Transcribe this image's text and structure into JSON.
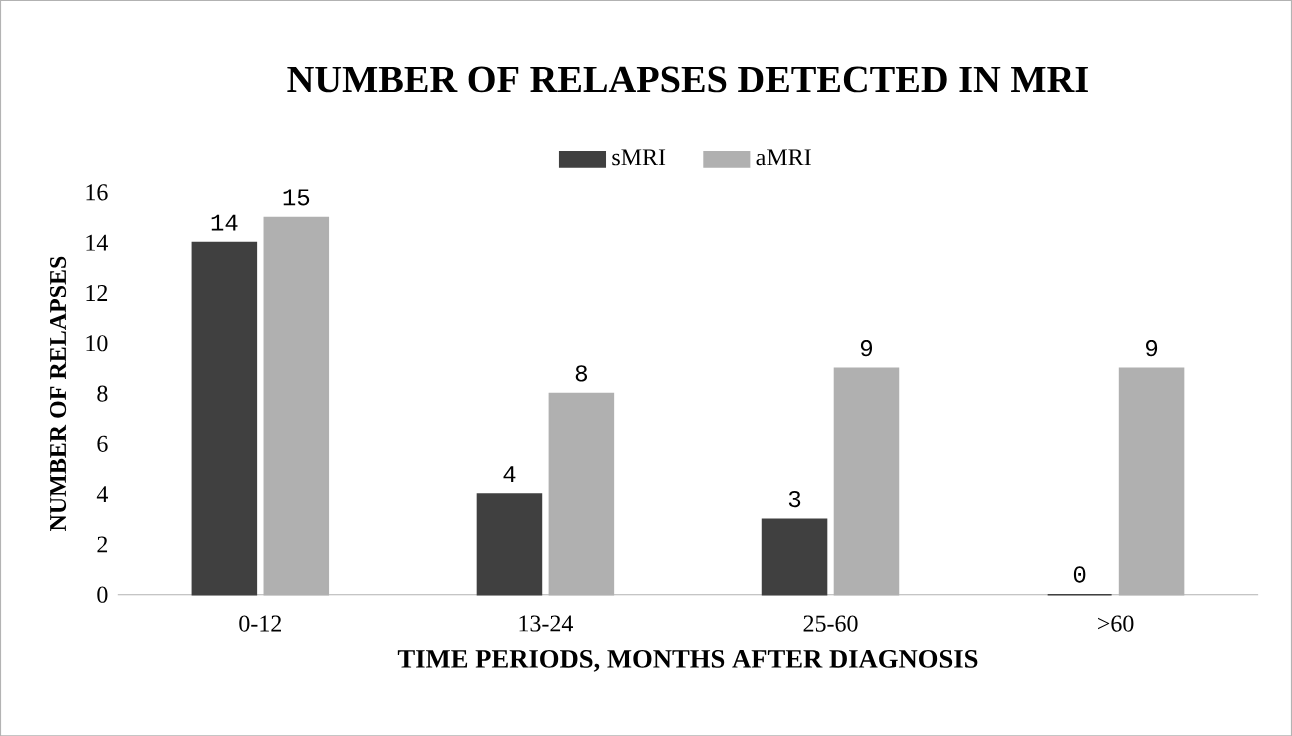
{
  "chart_data": {
    "type": "bar",
    "title": "NUMBER OF RELAPSES DETECTED IN MRI",
    "xlabel": "TIME PERIODS, MONTHS AFTER DIAGNOSIS",
    "ylabel": "NUMBER OF RELAPSES",
    "categories": [
      "0-12",
      "13-24",
      "25-60",
      ">60"
    ],
    "series": [
      {
        "name": "sMRI",
        "color": "#404040",
        "values": [
          14,
          4,
          3,
          0
        ]
      },
      {
        "name": "aMRI",
        "color": "#b0b0b0",
        "values": [
          15,
          8,
          9,
          9
        ]
      }
    ],
    "ylim": [
      0,
      16
    ],
    "yticks": [
      0,
      2,
      4,
      6,
      8,
      10,
      12,
      14,
      16
    ],
    "data_labels": true,
    "legend": "top"
  }
}
